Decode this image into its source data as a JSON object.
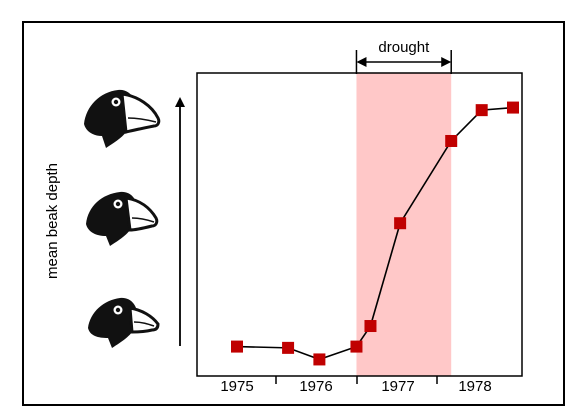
{
  "chart_data": {
    "type": "line",
    "title": "",
    "xlabel": "",
    "ylabel": "mean beak depth",
    "x_tick_labels": [
      "1975",
      "1976",
      "1977",
      "1978"
    ],
    "xlim": [
      1975,
      1978.9
    ],
    "ylim": [
      0,
      1
    ],
    "grid": false,
    "legend": "none",
    "annotation": {
      "label": "drought",
      "start": 1976.45,
      "end": 1977.6
    },
    "series": [
      {
        "name": "",
        "color": "#c00000",
        "marker": "square",
        "x": [
          1975.0,
          1975.62,
          1976.0,
          1976.45,
          1976.62,
          1976.98,
          1977.6,
          1977.97,
          1978.35
        ],
        "y": [
          0.06,
          0.055,
          0.01,
          0.06,
          0.14,
          0.54,
          0.86,
          0.98,
          0.99
        ]
      }
    ],
    "colors": {
      "shade": "#ffc8c8",
      "line": "#000000",
      "marker": "#c00000",
      "frame": "#000000"
    },
    "icons": [
      "finch-head-large-beak-icon",
      "finch-head-medium-beak-icon",
      "finch-head-small-beak-icon"
    ]
  }
}
